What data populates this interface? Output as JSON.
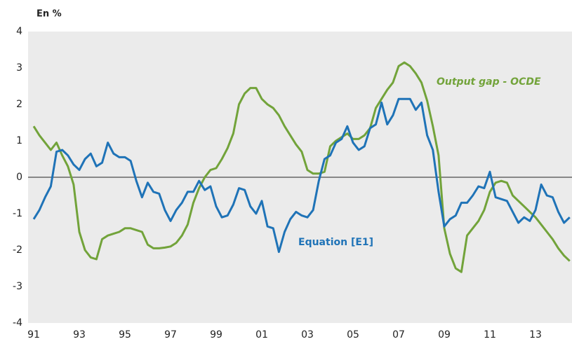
{
  "chart_data": {
    "type": "line",
    "y_label": "En %",
    "categories": [
      "91",
      null,
      null,
      null,
      null,
      null,
      null,
      null,
      "93",
      null,
      null,
      null,
      null,
      null,
      null,
      null,
      "95",
      null,
      null,
      null,
      null,
      null,
      null,
      null,
      "97",
      null,
      null,
      null,
      null,
      null,
      null,
      null,
      "99",
      null,
      null,
      null,
      null,
      null,
      null,
      null,
      "01",
      null,
      null,
      null,
      null,
      null,
      null,
      null,
      "03",
      null,
      null,
      null,
      null,
      null,
      null,
      null,
      "05",
      null,
      null,
      null,
      null,
      null,
      null,
      null,
      "07",
      null,
      null,
      null,
      null,
      null,
      null,
      null,
      "09",
      null,
      null,
      null,
      null,
      null,
      null,
      null,
      "11",
      null,
      null,
      null,
      null,
      null,
      null,
      null,
      "13",
      null,
      null,
      null,
      null,
      null,
      null
    ],
    "series": [
      {
        "name": "Output gap - OCDE",
        "color": "#72a33a",
        "values": [
          1.4,
          1.15,
          0.95,
          0.75,
          0.95,
          0.6,
          0.3,
          -0.2,
          -1.5,
          -2.0,
          -2.2,
          -2.25,
          -1.7,
          -1.6,
          -1.55,
          -1.5,
          -1.4,
          -1.4,
          -1.45,
          -1.5,
          -1.85,
          -1.95,
          -1.95,
          -1.93,
          -1.9,
          -1.8,
          -1.6,
          -1.3,
          -0.7,
          -0.3,
          0.0,
          0.2,
          0.25,
          0.5,
          0.8,
          1.2,
          2.0,
          2.3,
          2.45,
          2.45,
          2.15,
          2.0,
          1.9,
          1.7,
          1.4,
          1.15,
          0.9,
          0.7,
          0.2,
          0.1,
          0.1,
          0.15,
          0.85,
          1.0,
          1.1,
          1.2,
          1.05,
          1.05,
          1.15,
          1.35,
          1.9,
          2.15,
          2.4,
          2.6,
          3.05,
          3.15,
          3.05,
          2.85,
          2.6,
          2.1,
          1.4,
          0.6,
          -1.4,
          -2.1,
          -2.5,
          -2.6,
          -1.6,
          -1.4,
          -1.2,
          -0.9,
          -0.4,
          -0.15,
          -0.1,
          -0.15,
          -0.5,
          -0.65,
          -0.8,
          -0.95,
          -1.1,
          -1.3,
          -1.5,
          -1.7,
          -1.95,
          -2.15,
          -2.3
        ]
      },
      {
        "name": "Equation [E1]",
        "color": "#1f73b7",
        "values": [
          -1.15,
          -0.9,
          -0.55,
          -0.25,
          0.7,
          0.75,
          0.6,
          0.35,
          0.2,
          0.5,
          0.65,
          0.3,
          0.4,
          0.95,
          0.65,
          0.55,
          0.55,
          0.45,
          -0.1,
          -0.55,
          -0.15,
          -0.4,
          -0.45,
          -0.9,
          -1.2,
          -0.9,
          -0.7,
          -0.4,
          -0.4,
          -0.1,
          -0.35,
          -0.25,
          -0.8,
          -1.1,
          -1.05,
          -0.75,
          -0.3,
          -0.35,
          -0.8,
          -1.0,
          -0.65,
          -1.35,
          -1.4,
          -2.05,
          -1.5,
          -1.15,
          -0.95,
          -1.05,
          -1.1,
          -0.9,
          -0.1,
          0.5,
          0.6,
          0.95,
          1.05,
          1.4,
          0.95,
          0.75,
          0.85,
          1.35,
          1.45,
          2.05,
          1.45,
          1.7,
          2.15,
          2.15,
          2.15,
          1.85,
          2.05,
          1.15,
          0.75,
          -0.4,
          -1.35,
          -1.15,
          -1.05,
          -0.7,
          -0.7,
          -0.5,
          -0.25,
          -0.3,
          0.15,
          -0.55,
          -0.6,
          -0.65,
          -0.95,
          -1.25,
          -1.1,
          -1.2,
          -0.9,
          -0.2,
          -0.5,
          -0.55,
          -0.95,
          -1.25,
          -1.1
        ]
      }
    ],
    "ylim": [
      -4,
      4
    ],
    "yticks": [
      -4,
      -3,
      -2,
      -1,
      0,
      1,
      2,
      3,
      4
    ],
    "grid": false
  }
}
